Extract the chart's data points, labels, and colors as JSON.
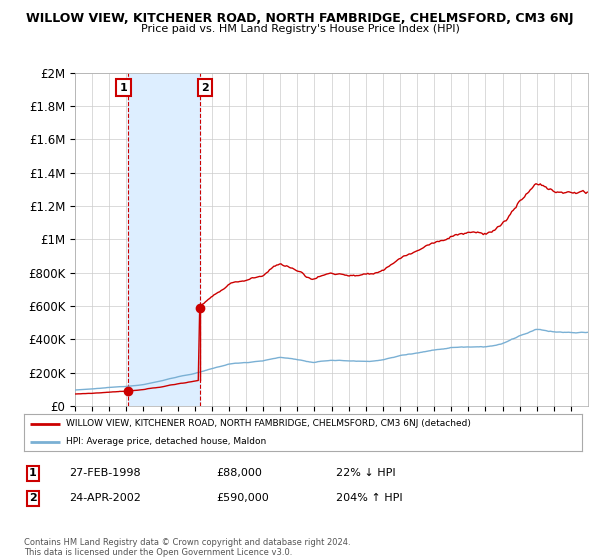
{
  "title": "WILLOW VIEW, KITCHENER ROAD, NORTH FAMBRIDGE, CHELMSFORD, CM3 6NJ",
  "subtitle": "Price paid vs. HM Land Registry's House Price Index (HPI)",
  "legend_property": "WILLOW VIEW, KITCHENER ROAD, NORTH FAMBRIDGE, CHELMSFORD, CM3 6NJ (detached)",
  "legend_hpi": "HPI: Average price, detached house, Maldon",
  "sale1_year": 1998,
  "sale1_month": 2,
  "sale1_price": 88000,
  "sale1_label": "1",
  "sale1_text": "27-FEB-1998",
  "sale1_pct": "22% ↓ HPI",
  "sale2_year": 2002,
  "sale2_month": 4,
  "sale2_price": 590000,
  "sale2_label": "2",
  "sale2_text": "24-APR-2002",
  "sale2_pct": "204% ↑ HPI",
  "footnote": "Contains HM Land Registry data © Crown copyright and database right 2024.\nThis data is licensed under the Open Government Licence v3.0.",
  "property_color": "#cc0000",
  "hpi_color": "#7ab0d4",
  "shade_color": "#ddeeff",
  "dashed_color": "#cc0000",
  "background_color": "#ffffff",
  "ylim": [
    0,
    2000000
  ],
  "xlim_start": 1995.0,
  "xlim_end": 2025.0
}
